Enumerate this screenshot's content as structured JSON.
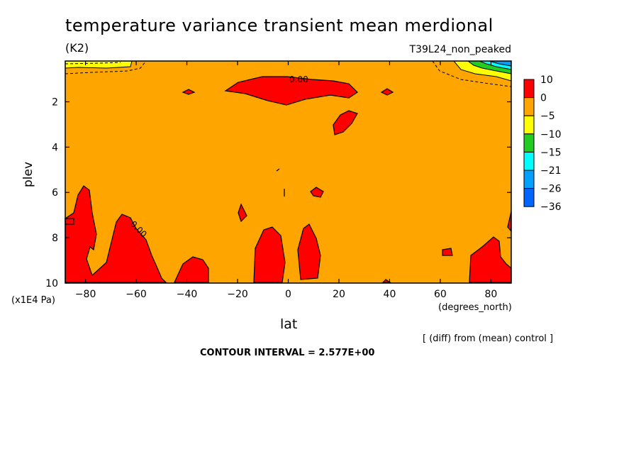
{
  "chart_data": {
    "type": "heatmap",
    "title": "temperature variance transient mean merdional",
    "units": "(K2)",
    "run_label": "T39L24_non_peaked",
    "xlabel": "lat",
    "x_units": "(degrees_north)",
    "ylabel": "plev",
    "y_units": "(x1E4 Pa)",
    "xlim": [
      -88,
      88
    ],
    "ylim": [
      10,
      0.2
    ],
    "x_ticks": [
      -80,
      -60,
      -40,
      -20,
      0,
      20,
      40,
      60,
      80
    ],
    "y_ticks": [
      2,
      4,
      6,
      8,
      10
    ],
    "contour_label": "0.00",
    "colorbar": {
      "labels": [
        "10",
        "0",
        "-5",
        "-10",
        "-15",
        "-21",
        "-26",
        "-36"
      ],
      "colors": [
        "#ff0000",
        "#ffa500",
        "#ffff00",
        "#22cc22",
        "#00ffff",
        "#00a0ff",
        "#0066ff"
      ]
    },
    "background_level_color": "#ffa500",
    "note": "[ (diff) from (mean) control ]",
    "contour_interval": "CONTOUR INTERVAL = 2.577E+00"
  }
}
